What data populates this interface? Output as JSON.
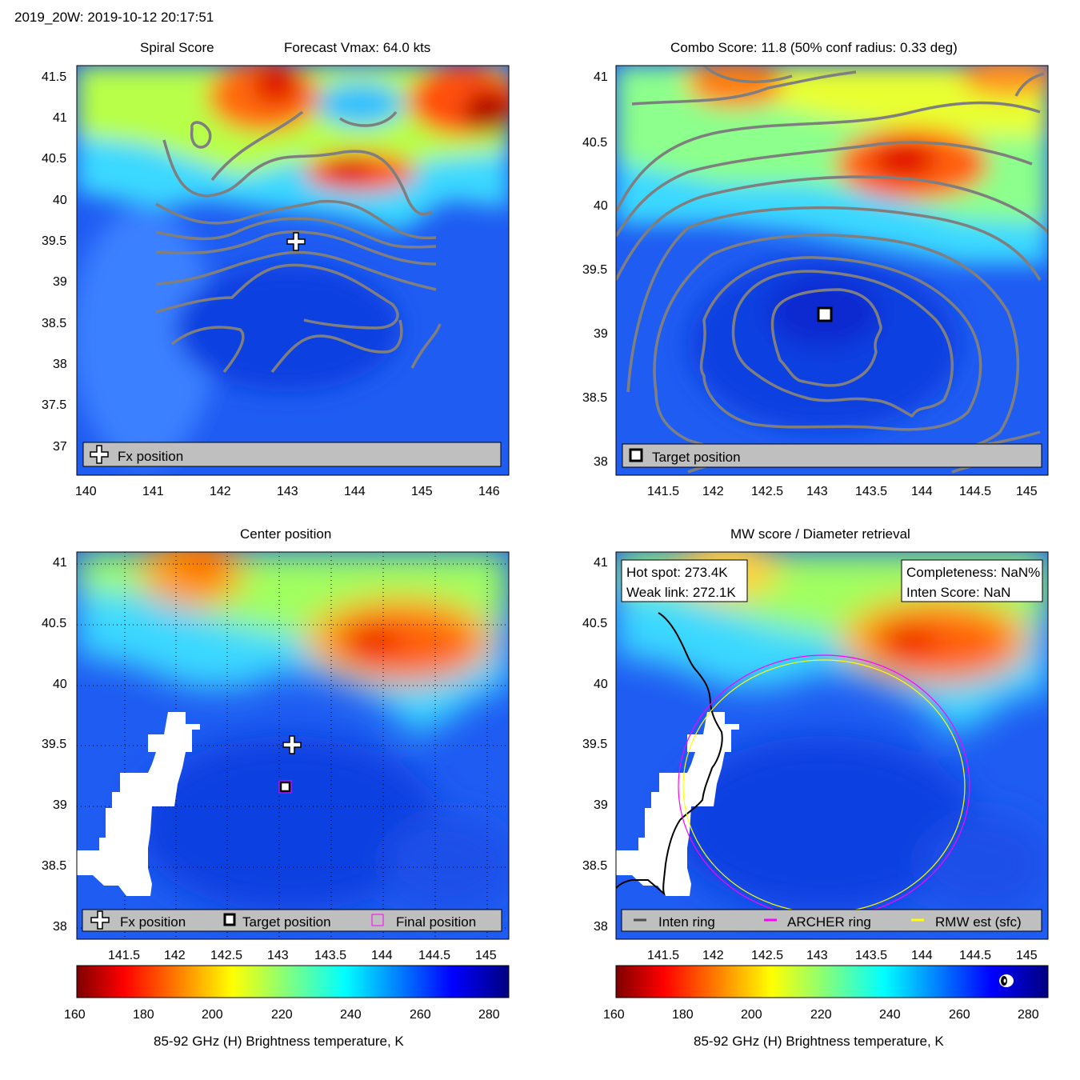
{
  "header": {
    "title": "2019_20W: 2019-10-12 20:17:51"
  },
  "panels": {
    "spiral": {
      "title_left": "Spiral Score",
      "title_right": "Forecast Vmax: 64.0 kts",
      "legend": {
        "fx": "Fx position"
      }
    },
    "combo": {
      "title": "Combo Score: 11.8  (50% conf radius: 0.33 deg)",
      "legend": {
        "target": "Target position"
      }
    },
    "center": {
      "title": "Center position",
      "legend": {
        "fx": "Fx position",
        "target": "Target position",
        "final": "Final position"
      }
    },
    "mw": {
      "title": "MW score / Diameter retrieval",
      "info_left": {
        "hot_spot": "Hot spot: 273.4K",
        "weak_link": "Weak link: 272.1K"
      },
      "info_right": {
        "completeness": "Completeness: NaN%",
        "inten_score": "Inten Score: NaN"
      },
      "legend": {
        "inten_ring": "Inten ring",
        "archer_ring": "ARCHER ring",
        "rmw_est": "RMW est (sfc)"
      }
    }
  },
  "colorbars": {
    "label": "85-92 GHz (H) Brightness temperature, K",
    "ticks": [
      "160",
      "180",
      "200",
      "220",
      "240",
      "260",
      "280"
    ]
  },
  "colors": {
    "contour": "#7f7f7f",
    "legend_bg": "#bfbfbf",
    "archer_ring": "#ff00ff",
    "rmw_ring": "#ffff00",
    "inten_ring": "#000000"
  },
  "chart_data": [
    {
      "type": "heatmap",
      "title": "Spiral Score",
      "annotation": "Forecast Vmax: 64.0 kts",
      "xlim": [
        140,
        146.3
      ],
      "ylim": [
        36.6,
        41.7
      ],
      "x_ticks": [
        "140",
        "141",
        "142",
        "143",
        "144",
        "145",
        "146"
      ],
      "y_ticks": [
        "37",
        "37.5",
        "38",
        "38.5",
        "39",
        "39.5",
        "40",
        "40.5",
        "41",
        "41.5"
      ],
      "colormap": "jet",
      "clim": [
        160,
        285
      ],
      "markers": [
        {
          "label": "Fx position",
          "lon": 143.1,
          "lat": 39.5
        }
      ]
    },
    {
      "type": "heatmap",
      "title": "Combo Score: 11.8  (50% conf radius: 0.33 deg)",
      "xlim": [
        141.0,
        145.2
      ],
      "ylim": [
        37.9,
        41.1
      ],
      "x_ticks": [
        "141.5",
        "142",
        "142.5",
        "143",
        "143.5",
        "144",
        "144.5",
        "145"
      ],
      "y_ticks": [
        "38",
        "38.5",
        "39",
        "39.5",
        "40",
        "40.5",
        "41"
      ],
      "colormap": "jet",
      "clim": [
        160,
        285
      ],
      "markers": [
        {
          "label": "Target position",
          "lon": 143.05,
          "lat": 39.16
        }
      ]
    },
    {
      "type": "heatmap",
      "title": "Center position",
      "xlim": [
        141.0,
        145.2
      ],
      "ylim": [
        37.9,
        41.1
      ],
      "x_ticks": [
        "141.5",
        "142",
        "142.5",
        "143",
        "143.5",
        "144",
        "144.5",
        "145"
      ],
      "y_ticks": [
        "38",
        "38.5",
        "39",
        "39.5",
        "40",
        "40.5",
        "41"
      ],
      "colormap": "jet",
      "clim": [
        160,
        285
      ],
      "grid": true,
      "markers": [
        {
          "label": "Fx position",
          "lon": 143.1,
          "lat": 39.5
        },
        {
          "label": "Target position",
          "lon": 143.05,
          "lat": 39.16
        },
        {
          "label": "Final position",
          "lon": 143.05,
          "lat": 39.16
        }
      ]
    },
    {
      "type": "heatmap",
      "title": "MW score / Diameter retrieval",
      "xlim": [
        141.0,
        145.2
      ],
      "ylim": [
        37.9,
        41.1
      ],
      "x_ticks": [
        "141.5",
        "142",
        "142.5",
        "143",
        "143.5",
        "144",
        "144.5",
        "145"
      ],
      "y_ticks": [
        "38",
        "38.5",
        "39",
        "39.5",
        "40",
        "40.5",
        "41"
      ],
      "colormap": "jet",
      "clim": [
        160,
        285
      ],
      "hot_spot_K": 273.4,
      "weak_link_K": 272.1,
      "rings": [
        {
          "label": "ARCHER ring",
          "center_lon": 143.05,
          "center_lat": 39.16,
          "radius_deg": 1.4
        },
        {
          "label": "RMW est (sfc)",
          "center_lon": 143.05,
          "center_lat": 39.16,
          "radius_deg": 1.36
        }
      ]
    }
  ]
}
